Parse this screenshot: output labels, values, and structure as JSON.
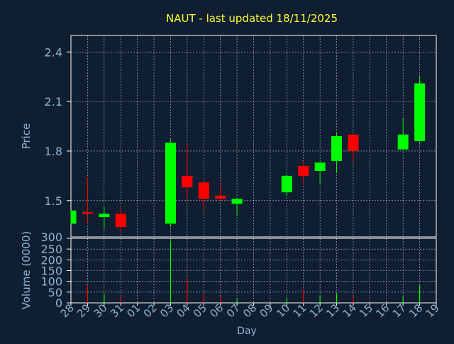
{
  "colors": {
    "background": "#0f1e30",
    "title": "#ffff33",
    "axis_text": "#8fb4d4",
    "frame": "#ffffff",
    "grid": "#ffffff",
    "up": "#00ff00",
    "down": "#ff0000"
  },
  "chart_data": [
    {
      "type": "candlestick",
      "title": "NAUT - last updated 18/11/2025",
      "ylabel": "Price",
      "ylim": [
        1.28,
        2.5
      ],
      "yticks": [
        1.5,
        1.8,
        2.1,
        2.4
      ],
      "ytick_labels": [
        "1.5",
        "1.8",
        "2.1",
        "2.4"
      ],
      "grid": true,
      "up_color": "#00ff00",
      "down_color": "#ff0000",
      "candles": [
        {
          "day": "28",
          "open": 1.36,
          "high": 1.44,
          "low": 1.36,
          "close": 1.44
        },
        {
          "day": "29",
          "open": 1.43,
          "high": 1.64,
          "low": 1.36,
          "close": 1.42
        },
        {
          "day": "30",
          "open": 1.4,
          "high": 1.46,
          "low": 1.33,
          "close": 1.42
        },
        {
          "day": "31",
          "open": 1.42,
          "high": 1.46,
          "low": 1.31,
          "close": 1.34
        },
        {
          "day": "03",
          "open": 1.36,
          "high": 1.87,
          "low": 1.34,
          "close": 1.85
        },
        {
          "day": "04",
          "open": 1.65,
          "high": 1.84,
          "low": 1.5,
          "close": 1.58
        },
        {
          "day": "05",
          "open": 1.61,
          "high": 1.61,
          "low": 1.44,
          "close": 1.51
        },
        {
          "day": "06",
          "open": 1.53,
          "high": 1.6,
          "low": 1.5,
          "close": 1.51
        },
        {
          "day": "07",
          "open": 1.48,
          "high": 1.52,
          "low": 1.41,
          "close": 1.51
        },
        {
          "day": "10",
          "open": 1.55,
          "high": 1.66,
          "low": 1.53,
          "close": 1.65
        },
        {
          "day": "11",
          "open": 1.71,
          "high": 1.74,
          "low": 1.6,
          "close": 1.65
        },
        {
          "day": "12",
          "open": 1.68,
          "high": 1.73,
          "low": 1.6,
          "close": 1.73
        },
        {
          "day": "13",
          "open": 1.74,
          "high": 1.91,
          "low": 1.67,
          "close": 1.89
        },
        {
          "day": "14",
          "open": 1.9,
          "high": 1.9,
          "low": 1.74,
          "close": 1.8
        },
        {
          "day": "17",
          "open": 1.81,
          "high": 2.0,
          "low": 1.81,
          "close": 1.9
        },
        {
          "day": "18",
          "open": 1.86,
          "high": 2.25,
          "low": 1.85,
          "close": 2.21
        }
      ]
    },
    {
      "type": "bar",
      "ylabel": "Volume (0000)",
      "xlabel": "Day",
      "ylim": [
        0,
        300
      ],
      "yticks": [
        0,
        50,
        100,
        150,
        200,
        250,
        300
      ],
      "ytick_labels": [
        "0",
        "50",
        "100",
        "150",
        "200",
        "250",
        "300"
      ],
      "grid": true,
      "categories": [
        "28",
        "29",
        "30",
        "31",
        "01",
        "02",
        "03",
        "04",
        "05",
        "06",
        "07",
        "08",
        "09",
        "10",
        "11",
        "12",
        "13",
        "14",
        "15",
        "16",
        "17",
        "18",
        "19"
      ],
      "bars": [
        {
          "day": "29",
          "value": 82,
          "color": "#ff0000"
        },
        {
          "day": "30",
          "value": 40,
          "color": "#00ff00"
        },
        {
          "day": "31",
          "value": 28,
          "color": "#ff0000"
        },
        {
          "day": "03",
          "value": 290,
          "color": "#00ff00"
        },
        {
          "day": "04",
          "value": 112,
          "color": "#ff0000"
        },
        {
          "day": "05",
          "value": 45,
          "color": "#ff0000"
        },
        {
          "day": "06",
          "value": 30,
          "color": "#ff0000"
        },
        {
          "day": "07",
          "value": 22,
          "color": "#00ff00"
        },
        {
          "day": "10",
          "value": 25,
          "color": "#00ff00"
        },
        {
          "day": "11",
          "value": 60,
          "color": "#ff0000"
        },
        {
          "day": "12",
          "value": 32,
          "color": "#00ff00"
        },
        {
          "day": "13",
          "value": 42,
          "color": "#00ff00"
        },
        {
          "day": "14",
          "value": 30,
          "color": "#ff0000"
        },
        {
          "day": "17",
          "value": 30,
          "color": "#00ff00"
        },
        {
          "day": "18",
          "value": 82,
          "color": "#00ff00"
        }
      ]
    }
  ]
}
